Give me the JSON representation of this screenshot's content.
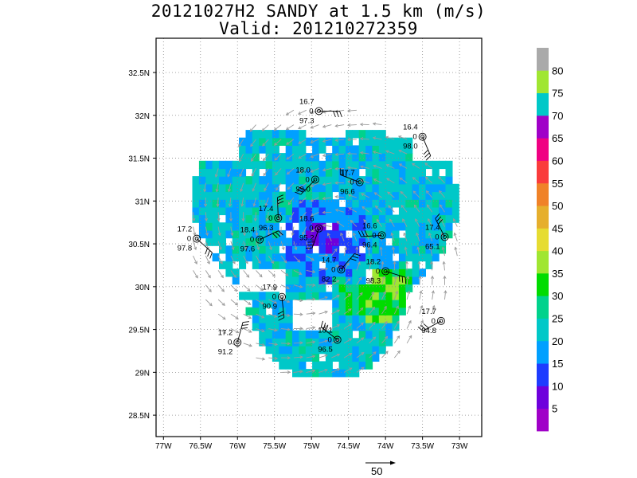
{
  "title": {
    "line1": "20121027H2 SANDY at 1.5 km (m/s)",
    "line2": "Valid: 201210272359"
  },
  "axes": {
    "lat_ticks": [
      "32.5N",
      "32N",
      "31.5N",
      "31N",
      "30.5N",
      "30N",
      "29.5N",
      "29N",
      "28.5N"
    ],
    "lat_values": [
      32.5,
      32,
      31.5,
      31,
      30.5,
      30,
      29.5,
      29,
      28.5
    ],
    "lon_ticks": [
      "77W",
      "76.5W",
      "76W",
      "75.5W",
      "75W",
      "74.5W",
      "74W",
      "73.5W",
      "73W"
    ],
    "lon_values": [
      -77,
      -76.5,
      -76,
      -75.5,
      -75,
      -74.5,
      -74,
      -73.5,
      -73
    ],
    "lon_range": [
      -77.1,
      -72.7
    ],
    "lat_range": [
      28.25,
      32.9
    ],
    "grid": true
  },
  "colorbar": {
    "labels": [
      "5",
      "10",
      "15",
      "20",
      "25",
      "30",
      "35",
      "40",
      "45",
      "50",
      "55",
      "60",
      "65",
      "70",
      "75",
      "80"
    ],
    "colors": [
      "#a000c8",
      "#6e00dc",
      "#1e3cff",
      "#00a0ff",
      "#00c8c8",
      "#00d28c",
      "#00dc00",
      "#a0e632",
      "#e6dc32",
      "#e6af2d",
      "#f08228",
      "#fa3c3c",
      "#f00082",
      "#a000c8",
      "#00c8c8",
      "#a0e632",
      "#aaaaaa"
    ]
  },
  "wind_scale": {
    "label": "50"
  },
  "center": {
    "lon": -74.85,
    "lat": 30.52
  },
  "stations": [
    {
      "lon": -74.9,
      "lat": 32.05,
      "top": "16.7",
      "mid": "0",
      "bot": "97.3"
    },
    {
      "lon": -73.5,
      "lat": 31.75,
      "top": "16.4",
      "mid": "0",
      "bot": "98.0"
    },
    {
      "lon": -74.95,
      "lat": 31.25,
      "top": "18.0",
      "mid": "0",
      "bot": "99.0"
    },
    {
      "lon": -74.35,
      "lat": 31.22,
      "top": "17.7",
      "mid": "0",
      "bot": "96.6"
    },
    {
      "lon": -75.45,
      "lat": 30.8,
      "top": "17.4",
      "mid": "0",
      "bot": "96.3"
    },
    {
      "lon": -75.7,
      "lat": 30.55,
      "top": "18.4",
      "mid": "0",
      "bot": "97.6"
    },
    {
      "lon": -76.55,
      "lat": 30.56,
      "top": "17.2",
      "mid": "0",
      "bot": "97.8"
    },
    {
      "lon": -74.9,
      "lat": 30.68,
      "top": "18.6",
      "mid": "0",
      "bot": "95.2"
    },
    {
      "lon": -74.05,
      "lat": 30.6,
      "top": "16.6",
      "mid": "0",
      "bot": "96.4"
    },
    {
      "lon": -73.2,
      "lat": 30.58,
      "top": "17.4",
      "mid": "0",
      "bot": "65.1"
    },
    {
      "lon": -74.6,
      "lat": 30.2,
      "top": "14.7",
      "mid": "0",
      "bot": "82.2"
    },
    {
      "lon": -74.0,
      "lat": 30.18,
      "top": "18.2",
      "mid": "0",
      "bot": "98.3"
    },
    {
      "lon": -75.4,
      "lat": 29.88,
      "top": "17.9",
      "mid": "0",
      "bot": "90.9"
    },
    {
      "lon": -73.25,
      "lat": 29.6,
      "top": "17.7",
      "mid": "0",
      "bot": "94.8"
    },
    {
      "lon": -74.65,
      "lat": 29.38,
      "top": "18.1",
      "mid": "0",
      "bot": "96.5"
    },
    {
      "lon": -76.0,
      "lat": 29.35,
      "top": "17.2",
      "mid": "0",
      "bot": "91.2"
    }
  ]
}
